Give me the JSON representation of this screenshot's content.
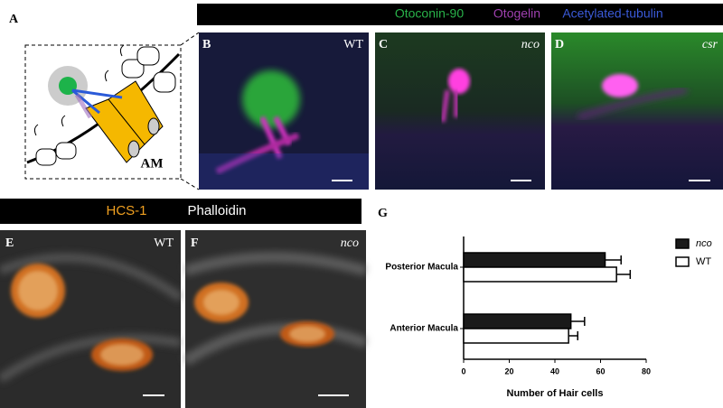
{
  "panel_labels": [
    "A",
    "B",
    "C",
    "D",
    "E",
    "F",
    "G"
  ],
  "stain_header_top": [
    "Otoconin-90",
    "Otogelin",
    "Acetylated-tubulin"
  ],
  "stain_header_bottom": [
    "HCS-1",
    "Phalloidin"
  ],
  "genotypes": {
    "B": "WT",
    "C": "nco",
    "D": "csr",
    "E": "WT",
    "F": "nco"
  },
  "schematic_label": "AM",
  "chart_data": {
    "type": "bar",
    "orientation": "horizontal",
    "categories": [
      "Posterior Macula",
      "Anterior Macula"
    ],
    "series": [
      {
        "name": "nco",
        "color": "#1a1a1a",
        "values": [
          62,
          47
        ],
        "errors": [
          7,
          6
        ]
      },
      {
        "name": "WT",
        "color": "#ffffff",
        "values": [
          67,
          46
        ],
        "errors": [
          6,
          4
        ]
      }
    ],
    "xlabel": "Number of Hair cells",
    "xlim": [
      0,
      80
    ],
    "xticks": [
      0,
      20,
      40,
      60,
      80
    ],
    "legend": "upper right"
  }
}
